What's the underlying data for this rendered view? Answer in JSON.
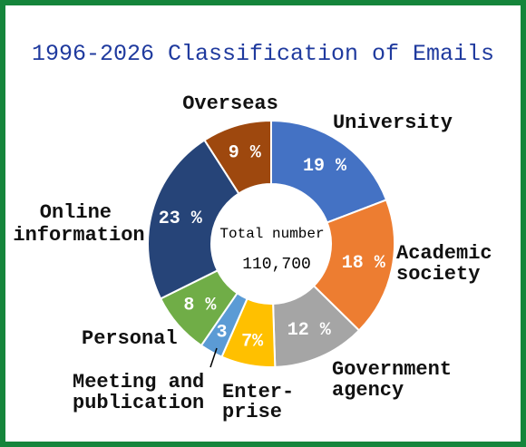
{
  "chart_data": {
    "type": "pie",
    "donut": true,
    "title": "1996-2026 Classification of Emails",
    "center_label": "Total number",
    "center_value": "110,700",
    "legend": "none",
    "slices": [
      {
        "label": [
          "University"
        ],
        "value": 19,
        "value_label": "19 %",
        "color": "#4472C4"
      },
      {
        "label": [
          "Academic",
          "society"
        ],
        "value": 18,
        "value_label": "18 %",
        "color": "#ED7D31"
      },
      {
        "label": [
          "Government",
          "agency"
        ],
        "value": 12,
        "value_label": "12 %",
        "color": "#A5A5A5"
      },
      {
        "label": [
          "Enter-",
          "prise"
        ],
        "value": 7,
        "value_label": "7%",
        "color": "#FFC000"
      },
      {
        "label": [
          "Meeting and",
          "publication"
        ],
        "value": 3,
        "value_label": "3",
        "color": "#5B9BD5"
      },
      {
        "label": [
          "Personal"
        ],
        "value": 8,
        "value_label": "8 %",
        "color": "#70AD47"
      },
      {
        "label": [
          "Online",
          "information"
        ],
        "value": 23,
        "value_label": "23 %",
        "color": "#264478"
      },
      {
        "label": [
          "Overseas"
        ],
        "value": 9,
        "value_label": "9 %",
        "color": "#9E480E"
      }
    ]
  },
  "colors": {
    "title": "#1F3A9E",
    "frame": "#15853B"
  }
}
